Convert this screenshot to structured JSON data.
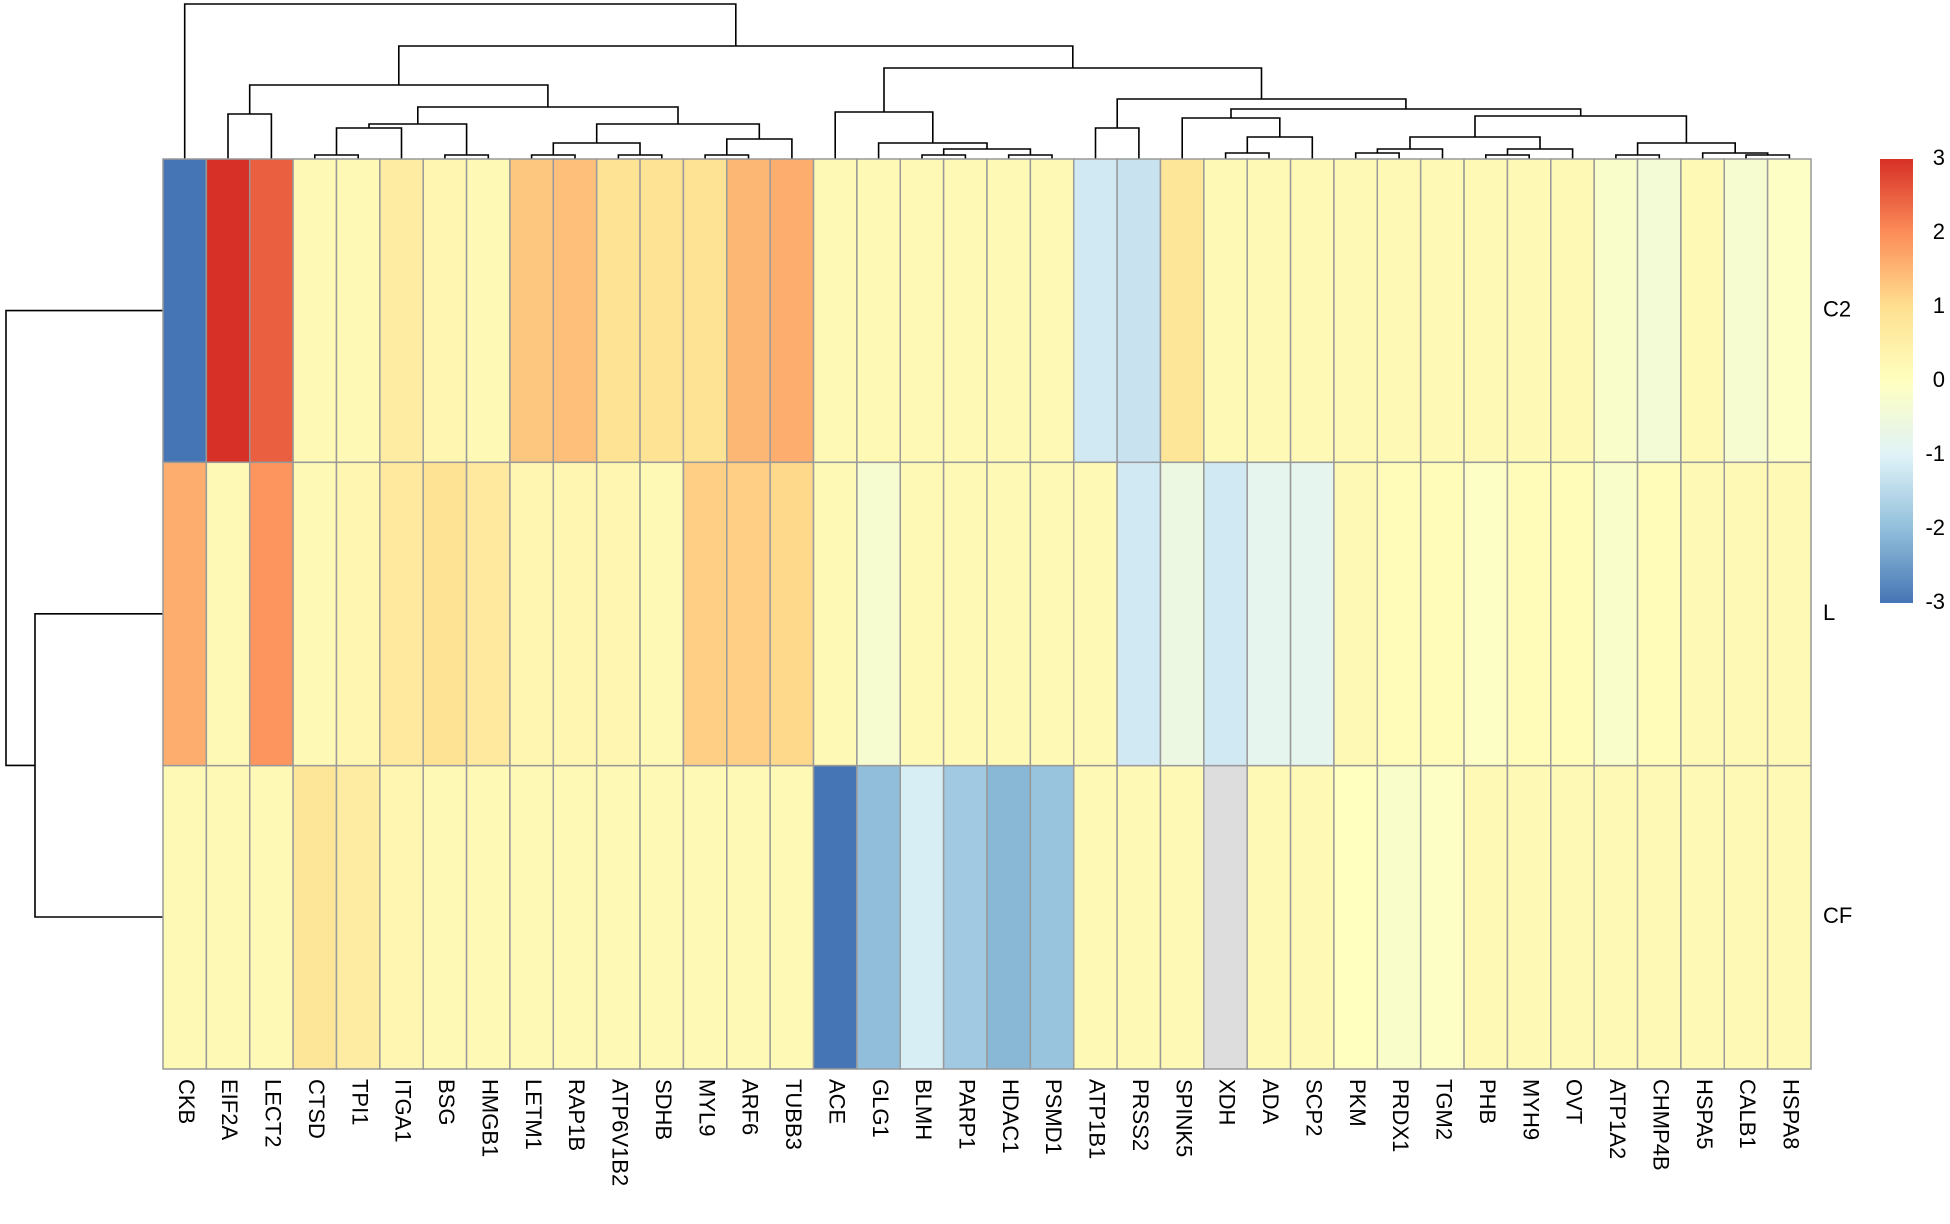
{
  "chart_data": {
    "type": "heatmap",
    "columns": [
      "CKB",
      "EIF2A",
      "LECT2",
      "CTSD",
      "TPI1",
      "ITGA1",
      "BSG",
      "HMGB1",
      "LETM1",
      "RAP1B",
      "ATP6V1B2",
      "SDHB",
      "MYL9",
      "ARF6",
      "TUBB3",
      "ACE",
      "GLG1",
      "BLMH",
      "PARP1",
      "HDAC1",
      "PSMD1",
      "ATP1B1",
      "PRSS2",
      "SPINK5",
      "XDH",
      "ADA",
      "SCP2",
      "PKM",
      "PRDX1",
      "TGM2",
      "PHB",
      "MYH9",
      "OVT",
      "ATP1A2",
      "CHMP4B",
      "HSPA5",
      "CALB1",
      "HSPA8"
    ],
    "rows": [
      "C2",
      "L",
      "CF"
    ],
    "values": [
      [
        -3,
        3,
        2.5,
        0.2,
        0.2,
        0.6,
        0.3,
        0.2,
        1.3,
        1.4,
        0.9,
        0.9,
        0.9,
        1.5,
        1.6,
        0.2,
        0.2,
        0.2,
        0.2,
        0.2,
        0.2,
        -1.2,
        -1.3,
        0.8,
        0.2,
        0.2,
        0.2,
        0.2,
        0.2,
        0.2,
        0.2,
        0.2,
        0.2,
        -0.2,
        -0.4,
        0.2,
        -0.3,
        -0.1
      ],
      [
        1.6,
        0.2,
        1.9,
        0.2,
        0.3,
        0.7,
        0.9,
        0.7,
        0.3,
        0.3,
        0.3,
        0.2,
        1.2,
        1.2,
        1.1,
        0.2,
        -0.3,
        0.2,
        0.2,
        0.2,
        0.2,
        0.2,
        -1.2,
        -0.6,
        -1.2,
        -0.8,
        -0.8,
        0.2,
        0.1,
        0.1,
        -0.1,
        0.1,
        0.1,
        -0.2,
        0.1,
        0.2,
        0.2,
        0.2
      ],
      [
        0.2,
        0.2,
        0.2,
        0.8,
        0.6,
        0.3,
        0.2,
        0.2,
        0.2,
        0.2,
        0.2,
        0.2,
        0.2,
        0.2,
        0.2,
        -3,
        -2,
        -1.1,
        -1.8,
        -2.1,
        -1.9,
        0.2,
        0.2,
        0.2,
        null,
        0.2,
        0.2,
        0,
        -0.2,
        -0.1,
        0.2,
        0.2,
        0.2,
        0.2,
        0.2,
        0.2,
        0.2,
        0.2
      ]
    ],
    "colorscale": [
      "#4575b4",
      "#91bfdb",
      "#e0f3f8",
      "#ffffbf",
      "#fee090",
      "#fc8d59",
      "#d73027"
    ],
    "na_color": "#dddddd",
    "clim": [
      -3,
      3
    ],
    "cticks": [
      -3,
      -2,
      -1,
      0,
      1,
      2,
      3
    ]
  }
}
